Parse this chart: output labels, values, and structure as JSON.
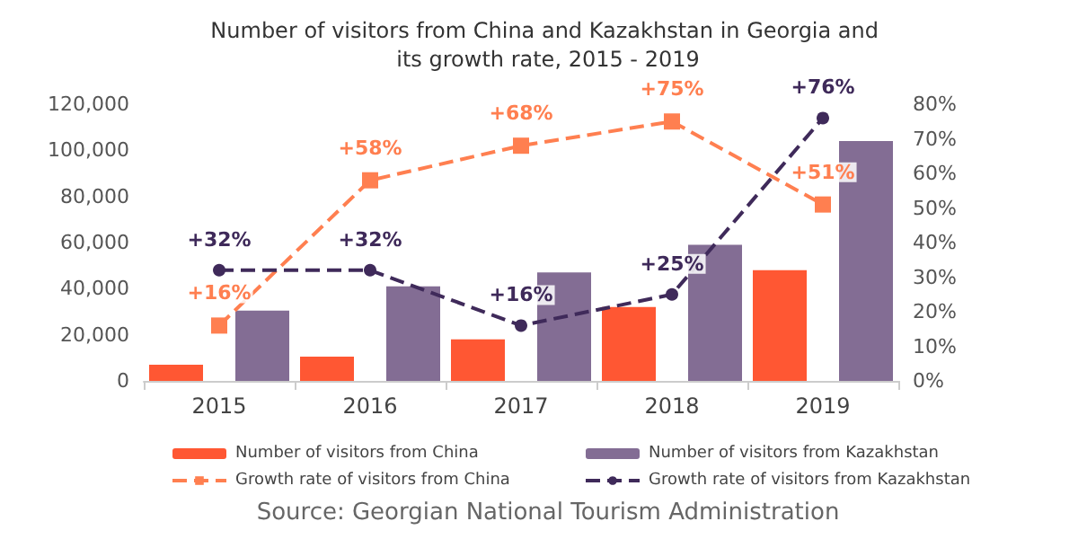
{
  "chart_data": {
    "type": "bar",
    "title": "Number of visitors from China and Kazakhstan in Georgia and its growth rate, 2015 - 2019",
    "categories": [
      "2015",
      "2016",
      "2017",
      "2018",
      "2019"
    ],
    "series": [
      {
        "name": "Number of visitors from China",
        "color": "#ff5733",
        "values": [
          7000,
          10500,
          18000,
          32000,
          48000
        ]
      },
      {
        "name": "Number of visitors from Kazakhstan",
        "color": "#836d94",
        "values": [
          30500,
          41000,
          47000,
          59000,
          104000
        ]
      },
      {
        "name": "Growth rate of visitors from China",
        "type": "line",
        "axis": "y2",
        "color": "#ff7f50",
        "marker": "square",
        "line_style": "dashed",
        "values": [
          16,
          58,
          68,
          75,
          51
        ],
        "value_labels": [
          "+16%",
          "+58%",
          "+68%",
          "+75%",
          "+51%"
        ]
      },
      {
        "name": "Growth rate of visitors from Kazakhstan",
        "type": "line",
        "axis": "y2",
        "color": "#3f2a5a",
        "marker": "circle",
        "line_style": "dashed",
        "values": [
          32,
          32,
          16,
          25,
          76
        ],
        "value_labels": [
          "+32%",
          "+32%",
          "+16%",
          "+25%",
          "+76%"
        ]
      }
    ],
    "ylim": [
      0,
      120000
    ],
    "yticks": [
      0,
      {
        "value": 20000,
        "label": "20,000"
      },
      {
        "value": 40000,
        "label": "40,000"
      },
      {
        "value": 60000,
        "label": "60,000"
      },
      {
        "value": 80000,
        "label": "80,000"
      },
      {
        "value": 100000,
        "label": "100,000"
      },
      {
        "value": 120000,
        "label": "120,000"
      }
    ],
    "y2lim": [
      0,
      80
    ],
    "y2ticks": [
      {
        "value": 0,
        "label": "0%"
      },
      {
        "value": 10,
        "label": "10%"
      },
      {
        "value": 20,
        "label": "20%"
      },
      {
        "value": 30,
        "label": "30%"
      },
      {
        "value": 40,
        "label": "40%"
      },
      {
        "value": 50,
        "label": "50%"
      },
      {
        "value": 60,
        "label": "60%"
      },
      {
        "value": 70,
        "label": "70%"
      },
      {
        "value": 80,
        "label": "80%"
      }
    ],
    "grid": false,
    "legend": "bottom",
    "annotations": [
      "Source: Georgian National Tourism Administration"
    ]
  }
}
